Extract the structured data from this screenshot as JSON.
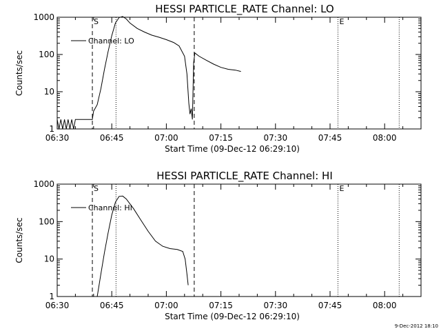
{
  "page": {
    "footer_stamp": "9-Dec-2012 18:10"
  },
  "chart_data": [
    {
      "type": "line",
      "title": "HESSI PARTICLE_RATE Channel: LO",
      "xlabel": "Start Time (09-Dec-12 06:29:10)",
      "ylabel": "Counts/sec",
      "yscale": "log",
      "ylim": [
        1,
        1000
      ],
      "xlim": [
        "06:30",
        "08:10"
      ],
      "x_ticks": [
        "06:30",
        "06:45",
        "07:00",
        "07:15",
        "07:30",
        "07:45",
        "08:00"
      ],
      "y_ticks": [
        "1",
        "10",
        "100",
        "1000"
      ],
      "legend": {
        "label": "Channel: LO",
        "placement": "top-left"
      },
      "markers": [
        {
          "label": "S",
          "time": "06:39:40",
          "style": "dashed"
        },
        {
          "label": "",
          "time": "06:46:10",
          "style": "dotted"
        },
        {
          "label": "",
          "time": "07:07:40",
          "style": "dashed"
        },
        {
          "label": "E",
          "time": "07:47:10",
          "style": "dotted"
        },
        {
          "label": "",
          "time": "08:04:00",
          "style": "dotted"
        }
      ],
      "series": [
        {
          "name": "Channel: LO",
          "points": [
            [
              "06:30:00",
              1.8
            ],
            [
              "06:30:30",
              1
            ],
            [
              "06:31:00",
              1.8
            ],
            [
              "06:31:30",
              1
            ],
            [
              "06:32:00",
              1.8
            ],
            [
              "06:32:30",
              1
            ],
            [
              "06:33:00",
              1.8
            ],
            [
              "06:33:30",
              1
            ],
            [
              "06:34:00",
              1.8
            ],
            [
              "06:34:30",
              1
            ],
            [
              "06:35:00",
              1.8
            ],
            [
              "06:36:00",
              1.8
            ],
            [
              "06:37:00",
              1.8
            ],
            [
              "06:38:00",
              1.8
            ],
            [
              "06:39:00",
              1.8
            ],
            [
              "06:39:40",
              1.8
            ],
            [
              "06:40:00",
              3
            ],
            [
              "06:41:00",
              4.5
            ],
            [
              "06:42:00",
              12
            ],
            [
              "06:43:00",
              40
            ],
            [
              "06:44:00",
              120
            ],
            [
              "06:45:00",
              320
            ],
            [
              "06:46:00",
              700
            ],
            [
              "06:47:00",
              980
            ],
            [
              "06:48:00",
              1050
            ],
            [
              "06:49:00",
              900
            ],
            [
              "06:50:00",
              700
            ],
            [
              "06:52:00",
              500
            ],
            [
              "06:54:00",
              400
            ],
            [
              "06:56:00",
              330
            ],
            [
              "06:58:00",
              290
            ],
            [
              "07:00:00",
              250
            ],
            [
              "07:02:00",
              210
            ],
            [
              "07:03:30",
              170
            ],
            [
              "07:05:00",
              90
            ],
            [
              "07:05:40",
              30
            ],
            [
              "07:06:10",
              5
            ],
            [
              "07:06:30",
              2.5
            ],
            [
              "07:06:50",
              3.5
            ],
            [
              "07:07:10",
              1.8
            ],
            [
              "07:07:30",
              60
            ],
            [
              "07:07:50",
              110
            ],
            [
              "07:09:00",
              90
            ],
            [
              "07:11:00",
              70
            ],
            [
              "07:13:00",
              55
            ],
            [
              "07:15:00",
              45
            ],
            [
              "07:17:00",
              40
            ],
            [
              "07:19:00",
              38
            ],
            [
              "07:20:30",
              35
            ]
          ]
        }
      ]
    },
    {
      "type": "line",
      "title": "HESSI PARTICLE_RATE Channel: HI",
      "xlabel": "Start Time (09-Dec-12 06:29:10)",
      "ylabel": "Counts/sec",
      "yscale": "log",
      "ylim": [
        1,
        1000
      ],
      "xlim": [
        "06:30",
        "08:10"
      ],
      "x_ticks": [
        "06:30",
        "06:45",
        "07:00",
        "07:15",
        "07:30",
        "07:45",
        "08:00"
      ],
      "y_ticks": [
        "1",
        "10",
        "100",
        "1000"
      ],
      "legend": {
        "label": "Channel: HI",
        "placement": "top-left"
      },
      "markers": [
        {
          "label": "S",
          "time": "06:39:40",
          "style": "dashed"
        },
        {
          "label": "",
          "time": "06:46:10",
          "style": "dotted"
        },
        {
          "label": "",
          "time": "07:07:40",
          "style": "dashed"
        },
        {
          "label": "E",
          "time": "07:47:10",
          "style": "dotted"
        },
        {
          "label": "",
          "time": "08:04:00",
          "style": "dotted"
        }
      ],
      "series": [
        {
          "name": "Channel: HI",
          "points": [
            [
              "06:41:00",
              1
            ],
            [
              "06:42:00",
              4
            ],
            [
              "06:43:00",
              15
            ],
            [
              "06:44:00",
              50
            ],
            [
              "06:45:00",
              150
            ],
            [
              "06:46:00",
              330
            ],
            [
              "06:47:00",
              470
            ],
            [
              "06:48:00",
              480
            ],
            [
              "06:49:00",
              400
            ],
            [
              "06:51:00",
              220
            ],
            [
              "06:53:00",
              110
            ],
            [
              "06:55:00",
              55
            ],
            [
              "06:57:00",
              30
            ],
            [
              "06:59:00",
              22
            ],
            [
              "07:01:00",
              19
            ],
            [
              "07:03:00",
              18
            ],
            [
              "07:04:30",
              16
            ],
            [
              "07:05:10",
              10
            ],
            [
              "07:05:40",
              4
            ],
            [
              "07:06:00",
              2
            ]
          ]
        }
      ]
    }
  ]
}
